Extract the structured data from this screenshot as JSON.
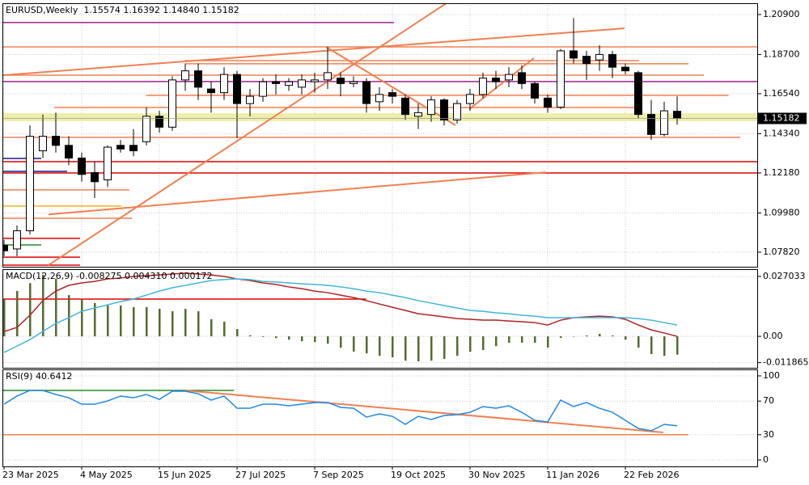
{
  "chart_data": [
    {
      "type": "candlestick",
      "title": "EURUSD,Weekly  1.15574 1.16392 1.14840 1.15182",
      "categories": [
        "23 Mar 2025",
        null,
        null,
        null,
        null,
        null,
        "4 May 2025",
        null,
        null,
        null,
        null,
        null,
        "15 Jun 2025",
        null,
        null,
        null,
        null,
        null,
        "27 Jul 2025",
        null,
        null,
        null,
        null,
        null,
        "7 Sep 2025",
        null,
        null,
        null,
        null,
        null,
        "19 Oct 2025",
        null,
        null,
        null,
        null,
        null,
        "30 Nov 2025",
        null,
        null,
        null,
        null,
        null,
        "11 Jan 2026",
        null,
        null,
        null,
        null,
        null,
        "22 Feb 2026",
        null,
        null,
        null,
        null
      ],
      "open": [
        1.082,
        1.08,
        1.09,
        1.134,
        1.142,
        1.137,
        1.13,
        1.122,
        1.118,
        1.137,
        1.137,
        1.139,
        1.153,
        1.147,
        1.173,
        1.178,
        1.168,
        1.166,
        1.176,
        1.16,
        1.164,
        1.172,
        1.17,
        1.169,
        1.172,
        1.173,
        1.174,
        1.171,
        1.172,
        1.161,
        1.166,
        1.163,
        1.153,
        1.154,
        1.162,
        1.151,
        1.16,
        1.165,
        1.174,
        1.173,
        1.177,
        1.171,
        1.163,
        1.158,
        1.189,
        1.186,
        1.184,
        1.187,
        1.18,
        1.177,
        1.154,
        1.143,
        1.15574
      ],
      "high": [
        1.085,
        1.093,
        1.148,
        1.154,
        1.155,
        1.142,
        1.133,
        1.128,
        1.137,
        1.14,
        1.146,
        1.158,
        1.156,
        1.175,
        1.182,
        1.182,
        1.172,
        1.18,
        1.178,
        1.168,
        1.174,
        1.176,
        1.174,
        1.176,
        1.177,
        1.191,
        1.177,
        1.175,
        1.174,
        1.169,
        1.168,
        1.165,
        1.16,
        1.164,
        1.163,
        1.162,
        1.168,
        1.177,
        1.178,
        1.18,
        1.181,
        1.172,
        1.165,
        1.19,
        1.207,
        1.189,
        1.192,
        1.189,
        1.182,
        1.178,
        1.162,
        1.161,
        1.16392
      ],
      "low": [
        1.076,
        1.076,
        1.088,
        1.13,
        1.133,
        1.126,
        1.117,
        1.108,
        1.114,
        1.133,
        1.131,
        1.137,
        1.144,
        1.145,
        1.167,
        1.162,
        1.155,
        1.162,
        1.141,
        1.153,
        1.161,
        1.165,
        1.167,
        1.165,
        1.166,
        1.168,
        1.164,
        1.169,
        1.155,
        1.156,
        1.16,
        1.151,
        1.146,
        1.15,
        1.148,
        1.149,
        1.156,
        1.163,
        1.168,
        1.169,
        1.168,
        1.16,
        1.155,
        1.157,
        1.182,
        1.173,
        1.178,
        1.174,
        1.176,
        1.152,
        1.14,
        1.142,
        1.1484
      ],
      "close": [
        1.079,
        1.09,
        1.142,
        1.142,
        1.137,
        1.13,
        1.121,
        1.117,
        1.136,
        1.135,
        1.134,
        1.153,
        1.147,
        1.173,
        1.178,
        1.169,
        1.166,
        1.176,
        1.16,
        1.164,
        1.172,
        1.171,
        1.172,
        1.173,
        1.173,
        1.177,
        1.171,
        1.172,
        1.16,
        1.165,
        1.164,
        1.154,
        1.155,
        1.162,
        1.151,
        1.16,
        1.165,
        1.174,
        1.172,
        1.176,
        1.171,
        1.163,
        1.158,
        1.189,
        1.185,
        1.182,
        1.187,
        1.18,
        1.178,
        1.154,
        1.143,
        1.156,
        1.15182
      ],
      "up_color": "#ffffff",
      "down_color": "#000000",
      "ylim": [
        1.0702,
        1.2152
      ],
      "yticks": [
        {
          "value": 1.209,
          "label": "1.20900"
        },
        {
          "value": 1.187,
          "label": "1.18700"
        },
        {
          "value": 1.1654,
          "label": "1.16540"
        },
        {
          "value": 1.1434,
          "label": "1.14340"
        },
        {
          "value": 1.1218,
          "label": "1.12180"
        },
        {
          "value": 1.0998,
          "label": "1.09980"
        },
        {
          "value": 1.0782,
          "label": "1.07820"
        }
      ],
      "grid": true,
      "band": {
        "from": 1.1503,
        "to": 1.1547,
        "color": "#eeeeaa"
      },
      "levels": [
        {
          "value": 1.2046,
          "from": 0,
          "to": 30.25,
          "color": "#a0208c"
        },
        {
          "value": 1.1721,
          "from": 0,
          "to": 58.4,
          "color": "#a0208c"
        },
        {
          "value": 1.1912,
          "from": 0,
          "to": 58.4,
          "color": "#f08050"
        },
        {
          "value": 1.1836,
          "from": 14.1,
          "to": 49.2,
          "color": "#f08050"
        },
        {
          "value": 1.1819,
          "from": 14.1,
          "to": 53,
          "color": "#f08050"
        },
        {
          "value": 1.1756,
          "from": 0,
          "to": 54.2,
          "color": "#f08050"
        },
        {
          "value": 1.1645,
          "from": 11.1,
          "to": 56.1,
          "color": "#f08050"
        },
        {
          "value": 1.1578,
          "from": 4,
          "to": 49.2,
          "color": "#f08050"
        },
        {
          "value": 1.1414,
          "from": 0,
          "to": 57,
          "color": "#f08050"
        },
        {
          "value": 1.128,
          "from": 0,
          "to": 58.4,
          "color": "#e00000"
        },
        {
          "value": 1.1218,
          "from": 0,
          "to": 58.4,
          "color": "#e00000"
        },
        {
          "value": 1.1227,
          "from": 0,
          "to": 5,
          "color": "#1a1a8c"
        },
        {
          "value": 1.1298,
          "from": 0,
          "to": 3,
          "color": "#1a1a8c"
        },
        {
          "value": 1.1125,
          "from": 0,
          "to": 9.8,
          "color": "#f08050"
        },
        {
          "value": 1.1036,
          "from": 0,
          "to": 9.2,
          "color": "#f0b020"
        },
        {
          "value": 1.0969,
          "from": 0,
          "to": 10,
          "color": "#f08050"
        },
        {
          "value": 1.0858,
          "from": 0,
          "to": 6,
          "color": "#e00000"
        },
        {
          "value": 1.0822,
          "from": 0,
          "to": 3,
          "color": "#2a8a2a"
        },
        {
          "value": 1.0755,
          "from": 0,
          "to": 6,
          "color": "#e00000"
        },
        {
          "value": 1.0711,
          "from": 0,
          "to": 6,
          "color": "#e00000"
        }
      ],
      "trendlines": [
        {
          "x": [
            3.56,
            34.3
          ],
          "y": [
            1.0711,
            1.2152
          ],
          "color": "#f08050"
        },
        {
          "x": [
            0,
            48.06
          ],
          "y": [
            1.1756,
            1.2014
          ],
          "color": "#f08050"
        },
        {
          "x": [
            3.56,
            42
          ],
          "y": [
            1.099,
            1.1222
          ],
          "color": "#f08050"
        },
        {
          "x": [
            25,
            35
          ],
          "y": [
            1.1912,
            1.1481
          ],
          "color": "#f08050"
        },
        {
          "x": [
            36.06,
            41.06
          ],
          "y": [
            1.1569,
            1.185
          ],
          "color": "#f08050"
        }
      ]
    },
    {
      "type": "macd",
      "title": "MACD(12,26,9) -0.008275 0.004310 0.000172",
      "histogram": {
        "color": "#556b2f",
        "values": [
          0.0168,
          0.0205,
          0.024,
          0.0278,
          0.026,
          0.0186,
          0.0168,
          0.015,
          0.0139,
          0.0139,
          0.0132,
          0.0132,
          0.0124,
          0.0113,
          0.0124,
          0.0113,
          0.0077,
          0.0066,
          0.0033,
          0.0005,
          -0.0003,
          -0.0008,
          -0.0015,
          -0.0022,
          -0.0026,
          -0.0033,
          -0.0051,
          -0.0069,
          -0.0077,
          -0.0088,
          -0.0095,
          -0.011,
          -0.0113,
          -0.011,
          -0.0102,
          -0.0088,
          -0.0069,
          -0.0062,
          -0.0044,
          -0.0029,
          -0.0029,
          -0.0029,
          -0.0051,
          -0.0007,
          0.0,
          0.0004,
          0.0011,
          0.0004,
          -0.0015,
          -0.0051,
          -0.008,
          -0.0088,
          -0.008275
        ]
      },
      "lines": [
        {
          "color": "#b22222",
          "values": [
            0.0022,
            0.004,
            0.0095,
            0.0161,
            0.0204,
            0.023,
            0.0241,
            0.0248,
            0.0259,
            0.0263,
            0.027,
            0.0274,
            0.0277,
            0.0281,
            0.0285,
            0.0281,
            0.0277,
            0.027,
            0.0259,
            0.0252,
            0.0241,
            0.0234,
            0.0223,
            0.0215,
            0.0204,
            0.0197,
            0.0186,
            0.0175,
            0.0161,
            0.0146,
            0.0131,
            0.0117,
            0.0102,
            0.0095,
            0.0088,
            0.008,
            0.0077,
            0.0073,
            0.0073,
            0.0069,
            0.0066,
            0.0062,
            0.0051,
            0.0073,
            0.0084,
            0.0088,
            0.0091,
            0.0088,
            0.0077,
            0.0051,
            0.0029,
            0.0015,
            0.0
          ]
        },
        {
          "color": "#3fb6d8",
          "values": [
            -0.0073,
            -0.0044,
            -0.0015,
            0.0022,
            0.0058,
            0.0084,
            0.0113,
            0.0128,
            0.0142,
            0.0157,
            0.0168,
            0.0186,
            0.0204,
            0.0219,
            0.023,
            0.0241,
            0.0252,
            0.0256,
            0.0259,
            0.0256,
            0.0248,
            0.0245,
            0.0241,
            0.0237,
            0.0234,
            0.023,
            0.0223,
            0.0215,
            0.0204,
            0.0197,
            0.0186,
            0.0175,
            0.0161,
            0.015,
            0.0139,
            0.0128,
            0.0117,
            0.0113,
            0.0106,
            0.0102,
            0.0095,
            0.0091,
            0.0084,
            0.0084,
            0.0084,
            0.0084,
            0.0084,
            0.0084,
            0.0084,
            0.008,
            0.0073,
            0.0062,
            0.0051
          ]
        }
      ],
      "levels": [
        {
          "value": 0.0168,
          "from": 0,
          "to": 28.1,
          "color": "#e00000"
        }
      ],
      "ylim": [
        -0.0142,
        0.0303
      ],
      "yticks": [
        0.027033,
        {
          "value": 0,
          "label": "0.00"
        },
        -0.011865
      ],
      "grid": true
    },
    {
      "type": "rsi",
      "title": "RSI(9) 40.6412",
      "lines": [
        {
          "color": "#1e88e5",
          "values": [
            66.3,
            76.0,
            82.7,
            82.7,
            77.9,
            74.0,
            66.3,
            66.3,
            70.2,
            76.0,
            74.0,
            77.9,
            72.1,
            81.7,
            81.7,
            78.8,
            71.2,
            76.0,
            61.5,
            61.5,
            66.3,
            66.3,
            64.4,
            66.3,
            68.3,
            68.3,
            62.5,
            61.5,
            51.0,
            54.8,
            51.9,
            42.3,
            51.9,
            48.1,
            52.9,
            53.8,
            56.7,
            63.5,
            61.5,
            64.4,
            56.7,
            47.1,
            45.2,
            71.2,
            63.5,
            68.3,
            61.5,
            56.7,
            47.1,
            37.5,
            34.6,
            42.3,
            40.6412
          ]
        }
      ],
      "levels": [
        {
          "value": 82.7,
          "from": 0,
          "to": 17.9,
          "color": "#2a8a2a"
        },
        {
          "value": 30,
          "from": 0,
          "to": 53,
          "color": "#f08050"
        }
      ],
      "trendlines": [
        {
          "x": [
            14.1,
            51.06
          ],
          "y": [
            82.7,
            32.7
          ],
          "color": "#f08050"
        }
      ],
      "ylim": [
        -7.7,
        107.7
      ],
      "yticks": [
        100,
        70,
        30,
        0
      ],
      "grid": true
    }
  ]
}
